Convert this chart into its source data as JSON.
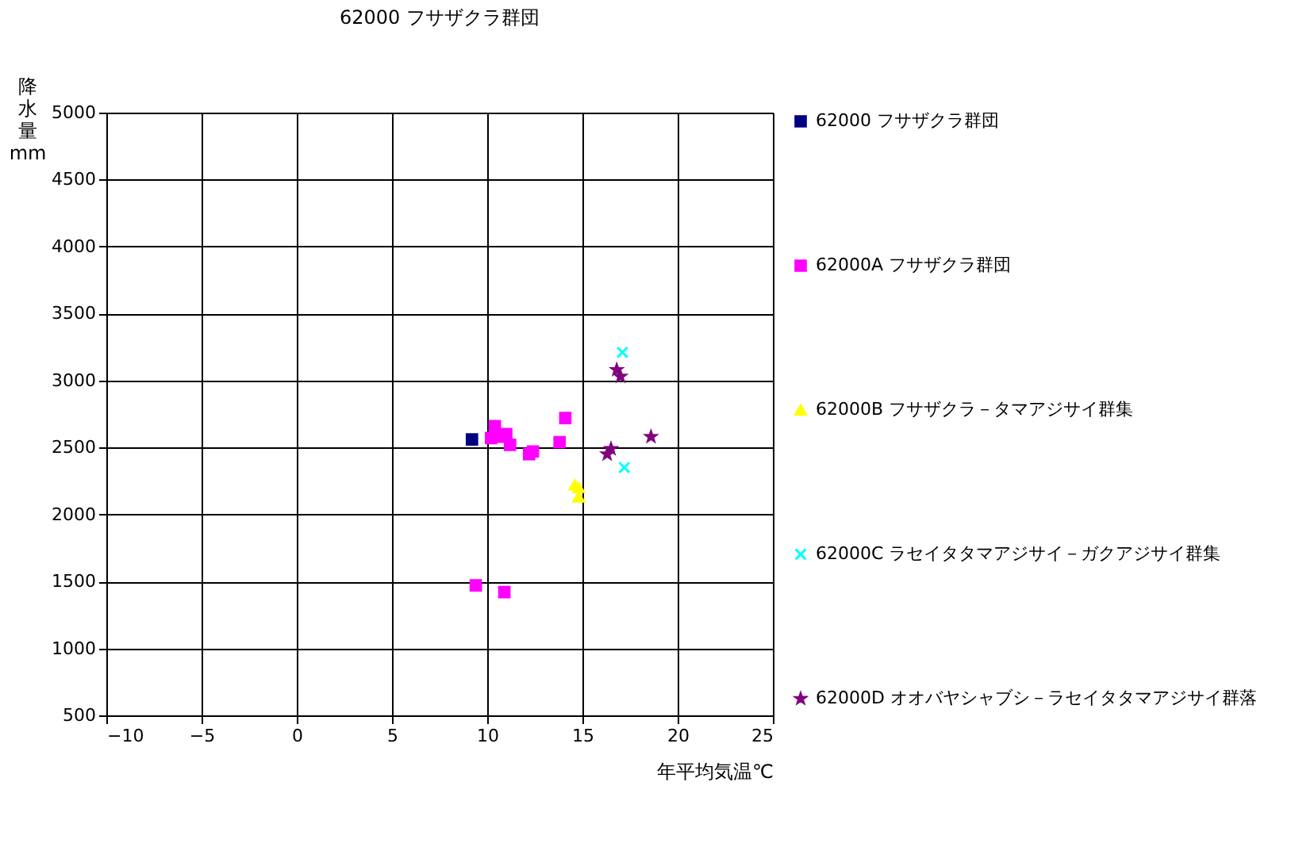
{
  "chart_data": {
    "type": "scatter",
    "title": "62000 フサザクラ群団",
    "xlabel": "年平均気温℃",
    "ylabel": "降水量 mm",
    "xlim": [
      -10,
      25
    ],
    "xticks": [
      -10,
      -5,
      0,
      5,
      10,
      15,
      20,
      25
    ],
    "ylim": [
      500,
      5000
    ],
    "yticks": [
      500,
      1000,
      1500,
      2000,
      2500,
      3000,
      3500,
      4000,
      4500,
      5000
    ],
    "grid": true,
    "legend": "right",
    "series": [
      {
        "name": "62000 フサザクラ群団",
        "color": "#000080",
        "marker": "square",
        "x": [
          9.2
        ],
        "values": [
          2560
        ]
      },
      {
        "name": "62000A フサザクラ群団",
        "color": "#ff00ff",
        "marker": "square",
        "x": [
          10.4,
          10.2,
          10.6,
          11.0,
          11.2,
          12.2,
          12.4,
          13.8,
          14.1,
          9.4,
          10.9
        ],
        "values": [
          2660,
          2570,
          2580,
          2600,
          2520,
          2450,
          2470,
          2540,
          2720,
          1470,
          1420
        ]
      },
      {
        "name": "62000B フサザクラ－タマアジサイ群集",
        "color": "#ffff00",
        "marker": "triangle",
        "x": [
          14.6,
          14.8,
          14.8
        ],
        "values": [
          2220,
          2200,
          2130
        ]
      },
      {
        "name": "62000C ラセイタタマアジサイ－ガクアジサイ群集",
        "color": "#00ffff",
        "marker": "cross",
        "x": [
          17.1,
          17.2
        ],
        "values": [
          3210,
          2350
        ]
      },
      {
        "name": "62000D オオバヤシャブシ－ラセイタタマアジサイ群落",
        "color": "#800080",
        "marker": "star",
        "x": [
          16.8,
          17.0,
          18.6,
          16.3,
          16.5
        ],
        "values": [
          3080,
          3030,
          2580,
          2450,
          2490
        ]
      }
    ]
  }
}
